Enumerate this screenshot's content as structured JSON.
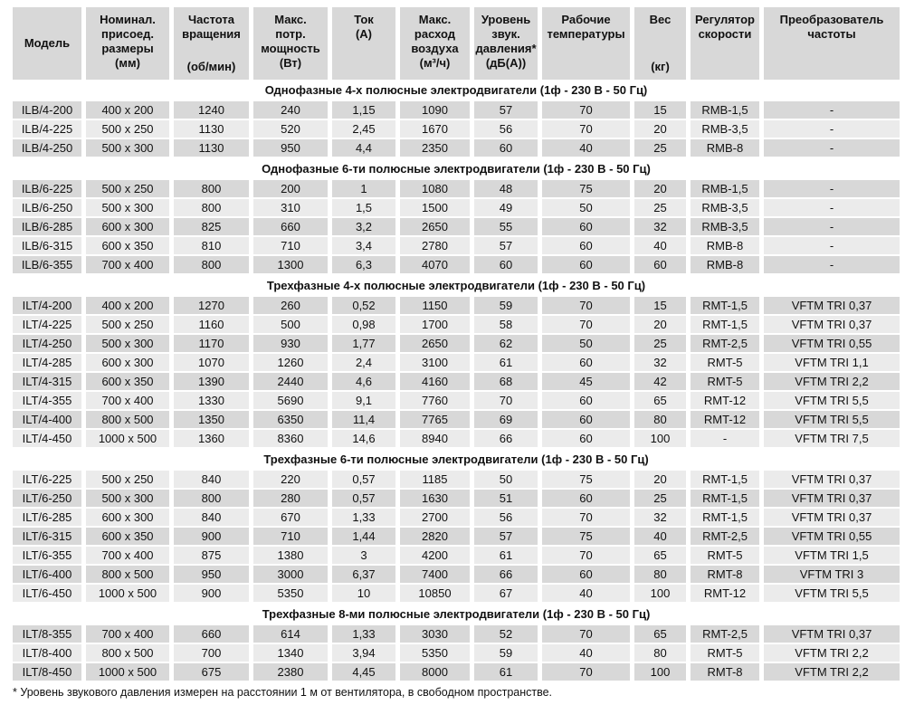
{
  "colors": {
    "row_dark": "#d8d8d8",
    "row_light": "#ebebeb",
    "text": "#111111",
    "background": "#ffffff"
  },
  "table": {
    "columns": [
      {
        "id": "model",
        "label": "Модель",
        "layout": "center"
      },
      {
        "id": "dimensions",
        "label": "Номинал.\nприсоед.\nразмеры\n(мм)",
        "layout": "top"
      },
      {
        "id": "rotation-speed",
        "label": "Частота\nвращения",
        "unit": "(об/мин)",
        "layout": "spread"
      },
      {
        "id": "max-power",
        "label": "Макс.\nпотр.\nмощность\n(Вт)",
        "layout": "top"
      },
      {
        "id": "current",
        "label": "Ток\n(А)",
        "layout": "top"
      },
      {
        "id": "max-airflow",
        "label": "Макс.\nрасход\nвоздуха\n(м³/ч)",
        "layout": "top"
      },
      {
        "id": "sound-pressure",
        "label": "Уровень\nзвук.\nдавления*\n(дБ(А))",
        "layout": "top"
      },
      {
        "id": "operating-temp",
        "label": "Рабочие\nтемпературы",
        "layout": "top"
      },
      {
        "id": "weight",
        "label": "Вес",
        "unit": "(кг)",
        "layout": "spread"
      },
      {
        "id": "speed-regulator",
        "label": "Регулятор\nскорости",
        "layout": "top"
      },
      {
        "id": "frequency-converter",
        "label": "Преобразователь\nчастоты",
        "layout": "top"
      }
    ],
    "sections": [
      {
        "title": "Однофазные 4-х полюсные электродвигатели (1ф - 230 В - 50 Гц)",
        "rows": [
          [
            "ILB/4-200",
            "400 x 200",
            "1240",
            "240",
            "1,15",
            "1090",
            "57",
            "70",
            "15",
            "RMB-1,5",
            "-"
          ],
          [
            "ILB/4-225",
            "500 x 250",
            "1130",
            "520",
            "2,45",
            "1670",
            "56",
            "70",
            "20",
            "RMB-3,5",
            "-"
          ],
          [
            "ILB/4-250",
            "500 x 300",
            "1130",
            "950",
            "4,4",
            "2350",
            "60",
            "40",
            "25",
            "RMB-8",
            "-"
          ]
        ]
      },
      {
        "title": "Однофазные 6-ти полюсные электродвигатели (1ф - 230 В - 50 Гц)",
        "rows": [
          [
            "ILB/6-225",
            "500 x 250",
            "800",
            "200",
            "1",
            "1080",
            "48",
            "75",
            "20",
            "RMB-1,5",
            "-"
          ],
          [
            "ILB/6-250",
            "500 x 300",
            "800",
            "310",
            "1,5",
            "1500",
            "49",
            "50",
            "25",
            "RMB-3,5",
            "-"
          ],
          [
            "ILB/6-285",
            "600 x 300",
            "825",
            "660",
            "3,2",
            "2650",
            "55",
            "60",
            "32",
            "RMB-3,5",
            "-"
          ],
          [
            "ILB/6-315",
            "600 x 350",
            "810",
            "710",
            "3,4",
            "2780",
            "57",
            "60",
            "40",
            "RMB-8",
            "-"
          ],
          [
            "ILB/6-355",
            "700 x 400",
            "800",
            "1300",
            "6,3",
            "4070",
            "60",
            "60",
            "60",
            "RMB-8",
            "-"
          ]
        ]
      },
      {
        "title": "Трехфазные 4-х полюсные электродвигатели (1ф - 230 В - 50 Гц)",
        "rows": [
          [
            "ILT/4-200",
            "400 x 200",
            "1270",
            "260",
            "0,52",
            "1150",
            "59",
            "70",
            "15",
            "RMT-1,5",
            "VFTM TRI 0,37"
          ],
          [
            "ILT/4-225",
            "500 x 250",
            "1160",
            "500",
            "0,98",
            "1700",
            "58",
            "70",
            "20",
            "RMT-1,5",
            "VFTM TRI 0,37"
          ],
          [
            "ILT/4-250",
            "500 x 300",
            "1170",
            "930",
            "1,77",
            "2650",
            "62",
            "50",
            "25",
            "RMT-2,5",
            "VFTM TRI 0,55"
          ],
          [
            "ILT/4-285",
            "600 x 300",
            "1070",
            "1260",
            "2,4",
            "3100",
            "61",
            "60",
            "32",
            "RMT-5",
            "VFTM TRI 1,1"
          ],
          [
            "ILT/4-315",
            "600 x 350",
            "1390",
            "2440",
            "4,6",
            "4160",
            "68",
            "45",
            "42",
            "RMT-5",
            "VFTM TRI 2,2"
          ],
          [
            "ILT/4-355",
            "700 x 400",
            "1330",
            "5690",
            "9,1",
            "7760",
            "70",
            "60",
            "65",
            "RMT-12",
            "VFTM TRI 5,5"
          ],
          [
            "ILT/4-400",
            "800 x 500",
            "1350",
            "6350",
            "11,4",
            "7765",
            "69",
            "60",
            "80",
            "RMT-12",
            "VFTM TRI 5,5"
          ],
          [
            "ILT/4-450",
            "1000 x 500",
            "1360",
            "8360",
            "14,6",
            "8940",
            "66",
            "60",
            "100",
            "-",
            "VFTM TRI 7,5"
          ]
        ]
      },
      {
        "title": "Трехфазные 6-ти полюсные электродвигатели (1ф - 230 В - 50 Гц)",
        "start_light": true,
        "rows": [
          [
            "ILT/6-225",
            "500 x 250",
            "840",
            "220",
            "0,57",
            "1185",
            "50",
            "75",
            "20",
            "RMT-1,5",
            "VFTM TRI 0,37"
          ],
          [
            "ILT/6-250",
            "500 x 300",
            "800",
            "280",
            "0,57",
            "1630",
            "51",
            "60",
            "25",
            "RMT-1,5",
            "VFTM TRI 0,37"
          ],
          [
            "ILT/6-285",
            "600 x 300",
            "840",
            "670",
            "1,33",
            "2700",
            "56",
            "70",
            "32",
            "RMT-1,5",
            "VFTM TRI 0,37"
          ],
          [
            "ILT/6-315",
            "600 x 350",
            "900",
            "710",
            "1,44",
            "2820",
            "57",
            "75",
            "40",
            "RMT-2,5",
            "VFTM TRI 0,55"
          ],
          [
            "ILT/6-355",
            "700 x 400",
            "875",
            "1380",
            "3",
            "4200",
            "61",
            "70",
            "65",
            "RMT-5",
            "VFTM TRI 1,5"
          ],
          [
            "ILT/6-400",
            "800 x 500",
            "950",
            "3000",
            "6,37",
            "7400",
            "66",
            "60",
            "80",
            "RMT-8",
            "VFTM TRI 3"
          ],
          [
            "ILT/6-450",
            "1000 x 500",
            "900",
            "5350",
            "10",
            "10850",
            "67",
            "40",
            "100",
            "RMT-12",
            "VFTM TRI 5,5"
          ]
        ]
      },
      {
        "title": "Трехфазные 8-ми полюсные электродвигатели (1ф - 230 В - 50 Гц)",
        "rows": [
          [
            "ILT/8-355",
            "700 x 400",
            "660",
            "614",
            "1,33",
            "3030",
            "52",
            "70",
            "65",
            "RMT-2,5",
            "VFTM TRI 0,37"
          ],
          [
            "ILT/8-400",
            "800 x 500",
            "700",
            "1340",
            "3,94",
            "5350",
            "59",
            "40",
            "80",
            "RMT-5",
            "VFTM TRI 2,2"
          ],
          [
            "ILT/8-450",
            "1000 x 500",
            "675",
            "2380",
            "4,45",
            "8000",
            "61",
            "70",
            "100",
            "RMT-8",
            "VFTM TRI 2,2"
          ]
        ]
      }
    ],
    "footnote": "* Уровень звукового давления измерен на расстоянии 1 м от вентилятора, в свободном пространстве."
  }
}
